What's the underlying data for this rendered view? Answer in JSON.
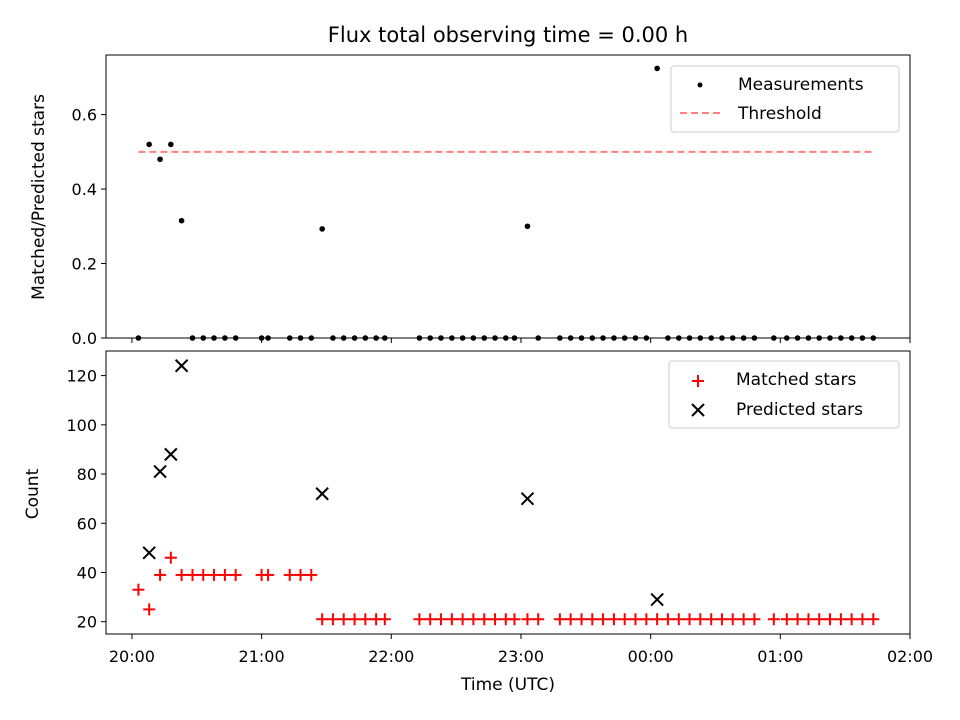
{
  "chart_data": [
    {
      "type": "scatter",
      "title": "Flux total observing time = 0.00 h",
      "ylabel": "Matched/Predicted stars",
      "ylim": [
        0,
        0.76
      ],
      "yticks": [
        0.0,
        0.2,
        0.4,
        0.6
      ],
      "ytick_labels": [
        "0.0",
        "0.2",
        "0.4",
        "0.6"
      ],
      "xlim": [
        -0.2,
        6.0
      ],
      "legend_position": "top-right",
      "series": [
        {
          "name": "Measurements",
          "marker": "dot",
          "color": "#000000",
          "x": [
            0.05,
            0.133,
            0.217,
            0.3,
            0.383,
            0.467,
            0.55,
            0.633,
            0.717,
            0.8,
            1.0,
            1.05,
            1.217,
            1.3,
            1.383,
            1.467,
            1.55,
            1.633,
            1.717,
            1.8,
            1.883,
            1.95,
            2.217,
            2.3,
            2.383,
            2.467,
            2.55,
            2.633,
            2.717,
            2.8,
            2.883,
            2.95,
            3.05,
            3.133,
            3.3,
            3.383,
            3.467,
            3.55,
            3.633,
            3.717,
            3.8,
            3.883,
            3.967,
            4.05,
            4.133,
            4.217,
            4.3,
            4.383,
            4.467,
            4.55,
            4.633,
            4.717,
            4.8,
            4.95,
            5.05,
            5.133,
            5.217,
            5.3,
            5.383,
            5.467,
            5.55,
            5.633,
            5.717
          ],
          "y": [
            0.0,
            0.52,
            0.48,
            0.52,
            0.315,
            0.0,
            0.0,
            0.0,
            0.0,
            0.0,
            0.0,
            0.0,
            0.0,
            0.0,
            0.0,
            0.293,
            0.0,
            0.0,
            0.0,
            0.0,
            0.0,
            0.0,
            0.0,
            0.0,
            0.0,
            0.0,
            0.0,
            0.0,
            0.0,
            0.0,
            0.0,
            0.0,
            0.3,
            0.0,
            0.0,
            0.0,
            0.0,
            0.0,
            0.0,
            0.0,
            0.0,
            0.0,
            0.0,
            0.724,
            0.0,
            0.0,
            0.0,
            0.0,
            0.0,
            0.0,
            0.0,
            0.0,
            0.0,
            0.0,
            0.0,
            0.0,
            0.0,
            0.0,
            0.0,
            0.0,
            0.0,
            0.0,
            0.0
          ]
        },
        {
          "name": "Threshold",
          "line": "dashed",
          "color": "#ff7f7f",
          "x": [
            0.05,
            5.717
          ],
          "y": [
            0.5,
            0.5
          ]
        }
      ]
    },
    {
      "type": "scatter",
      "xlabel": "Time (UTC)",
      "ylabel": "Count",
      "ylim": [
        15,
        130
      ],
      "yticks": [
        20,
        40,
        60,
        80,
        100,
        120
      ],
      "ytick_labels": [
        "20",
        "40",
        "60",
        "80",
        "100",
        "120"
      ],
      "xlim": [
        -0.2,
        6.0
      ],
      "xticks": [
        0,
        1,
        2,
        3,
        4,
        5,
        6
      ],
      "xtick_labels": [
        "20:00",
        "21:00",
        "22:00",
        "23:00",
        "00:00",
        "01:00",
        "02:00"
      ],
      "legend_position": "top-right",
      "series": [
        {
          "name": "Matched stars",
          "marker": "plus",
          "color": "#ff0000",
          "x": [
            0.05,
            0.133,
            0.217,
            0.3,
            0.383,
            0.467,
            0.55,
            0.633,
            0.717,
            0.8,
            1.0,
            1.05,
            1.217,
            1.3,
            1.383,
            1.467,
            1.55,
            1.633,
            1.717,
            1.8,
            1.883,
            1.95,
            2.217,
            2.3,
            2.383,
            2.467,
            2.55,
            2.633,
            2.717,
            2.8,
            2.883,
            2.95,
            3.05,
            3.133,
            3.3,
            3.383,
            3.467,
            3.55,
            3.633,
            3.717,
            3.8,
            3.883,
            3.967,
            4.05,
            4.133,
            4.217,
            4.3,
            4.383,
            4.467,
            4.55,
            4.633,
            4.717,
            4.8,
            4.95,
            5.05,
            5.133,
            5.217,
            5.3,
            5.383,
            5.467,
            5.55,
            5.633,
            5.717
          ],
          "y": [
            33,
            25,
            39,
            46,
            39,
            39,
            39,
            39,
            39,
            39,
            39,
            39,
            39,
            39,
            39,
            21,
            21,
            21,
            21,
            21,
            21,
            21,
            21,
            21,
            21,
            21,
            21,
            21,
            21,
            21,
            21,
            21,
            21,
            21,
            21,
            21,
            21,
            21,
            21,
            21,
            21,
            21,
            21,
            21,
            21,
            21,
            21,
            21,
            21,
            21,
            21,
            21,
            21,
            21,
            21,
            21,
            21,
            21,
            21,
            21,
            21,
            21,
            21
          ]
        },
        {
          "name": "Predicted stars",
          "marker": "x",
          "color": "#000000",
          "x": [
            0.133,
            0.217,
            0.3,
            0.383,
            1.467,
            3.05,
            4.05
          ],
          "y": [
            48,
            81,
            88,
            124,
            72,
            70,
            29
          ]
        }
      ]
    }
  ]
}
